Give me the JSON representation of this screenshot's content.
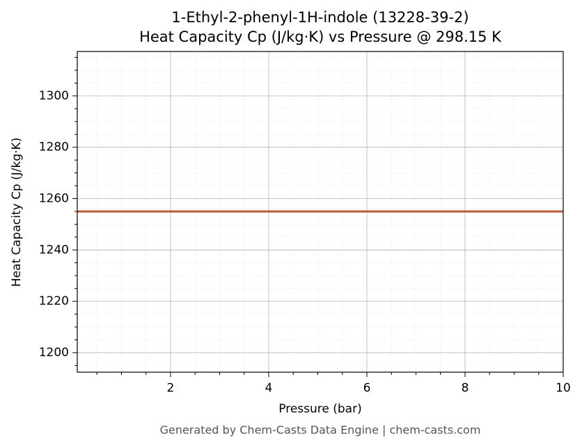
{
  "chart_data": {
    "type": "line",
    "title": [
      "1-Ethyl-2-phenyl-1H-indole (13228-39-2)",
      "Heat Capacity Cp (J/kg·K) vs Pressure @ 298.15 K"
    ],
    "x_label": "Pressure (bar)",
    "y_label": "Heat Capacity Cp (J/kg·K)",
    "footer": "Generated by Chem-Casts Data Engine | chem-casts.com",
    "x": [
      0.1,
      10
    ],
    "series": [
      {
        "color": "#c8562a",
        "values": [
          1255,
          1255
        ]
      }
    ],
    "xlim": [
      0.1,
      10
    ],
    "xticks": [
      2,
      4,
      6,
      8,
      10
    ],
    "ylim": [
      1192.4,
      1317.3
    ],
    "yticks": [
      1200,
      1220,
      1240,
      1260,
      1280,
      1300
    ],
    "minor_xticks": [
      0.5,
      1,
      1.5,
      2.5,
      3,
      3.5,
      4.5,
      5,
      5.5,
      6.5,
      7,
      7.5,
      8.5,
      9,
      9.5
    ],
    "minor_yticks": [
      1195,
      1205,
      1210,
      1215,
      1225,
      1230,
      1235,
      1245,
      1250,
      1255,
      1265,
      1270,
      1275,
      1285,
      1290,
      1295,
      1305,
      1310,
      1315
    ],
    "grid": true
  }
}
